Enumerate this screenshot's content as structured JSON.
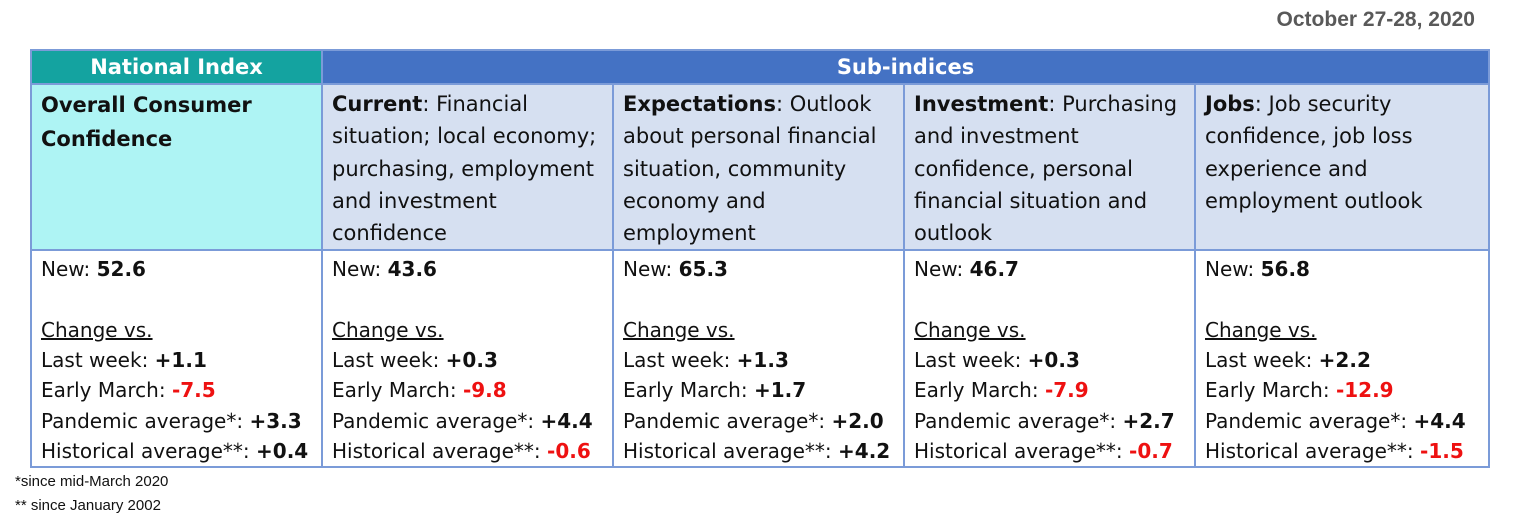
{
  "date": "October 27-28, 2020",
  "headers": {
    "national": "National Index",
    "sub": "Sub-indices"
  },
  "columns": [
    {
      "title": "Overall Consumer Confidence",
      "desc": "",
      "new_label": "New: ",
      "new_value": "52.6",
      "change_label": "Change vs.",
      "rows": [
        {
          "label": "Last week: ",
          "value": "+1.1",
          "negative": false
        },
        {
          "label": "Early March: ",
          "value": "-7.5",
          "negative": true
        },
        {
          "label": "Pandemic average*: ",
          "value": "+3.3",
          "negative": false
        },
        {
          "label": "Historical average**: ",
          "value": "+0.4",
          "negative": false
        }
      ]
    },
    {
      "title": "Current",
      "desc": ": Financial situation; local economy; purchasing, employment and investment confidence",
      "new_label": "New: ",
      "new_value": "43.6",
      "change_label": "Change vs.",
      "rows": [
        {
          "label": "Last week: ",
          "value": "+0.3",
          "negative": false
        },
        {
          "label": "Early March: ",
          "value": "-9.8",
          "negative": true
        },
        {
          "label": "Pandemic average*:  ",
          "value": "+4.4",
          "negative": false
        },
        {
          "label": "Historical average**: ",
          "value": "-0.6",
          "negative": true
        }
      ]
    },
    {
      "title": "Expectations",
      "desc": ": Outlook about personal financial situation, community economy and employment",
      "new_label": "New: ",
      "new_value": "65.3",
      "change_label": "Change vs.",
      "rows": [
        {
          "label": "Last week: ",
          "value": "+1.3",
          "negative": false
        },
        {
          "label": "Early March: ",
          "value": "+1.7",
          "negative": false
        },
        {
          "label": "Pandemic average*: ",
          "value": "+2.0",
          "negative": false
        },
        {
          "label": "Historical average**: ",
          "value": "+4.2",
          "negative": false
        }
      ]
    },
    {
      "title": "Investment",
      "desc": ": Purchasing and investment confidence, personal financial situation and outlook",
      "new_label": "New: ",
      "new_value": "46.7",
      "change_label": "Change vs.",
      "rows": [
        {
          "label": "Last week: ",
          "value": "+0.3",
          "negative": false
        },
        {
          "label": "Early March: ",
          "value": "-7.9",
          "negative": true
        },
        {
          "label": "Pandemic average*: ",
          "value": "+2.7",
          "negative": false
        },
        {
          "label": "Historical average**: ",
          "value": "-0.7",
          "negative": true
        }
      ]
    },
    {
      "title": "Jobs",
      "desc": ": Job security confidence, job loss experience and employment outlook",
      "new_label": "New: ",
      "new_value": "56.8",
      "change_label": "Change vs.",
      "rows": [
        {
          "label": "Last week: ",
          "value": "+2.2",
          "negative": false
        },
        {
          "label": "Early March: ",
          "value": "-12.9",
          "negative": true
        },
        {
          "label": "Pandemic average*: ",
          "value": "+4.4",
          "negative": false
        },
        {
          "label": "Historical average**: ",
          "value": "-1.5",
          "negative": true
        }
      ]
    }
  ],
  "footnotes": [
    "*since mid-March 2020",
    "** since January 2002"
  ],
  "colors": {
    "national_header": "#14a3a0",
    "sub_header": "#4472c4",
    "national_desc_bg": "#aef4f4",
    "sub_desc_bg": "#d6e0f1",
    "negative": "#ee1111",
    "border": "#7b9bd8"
  }
}
